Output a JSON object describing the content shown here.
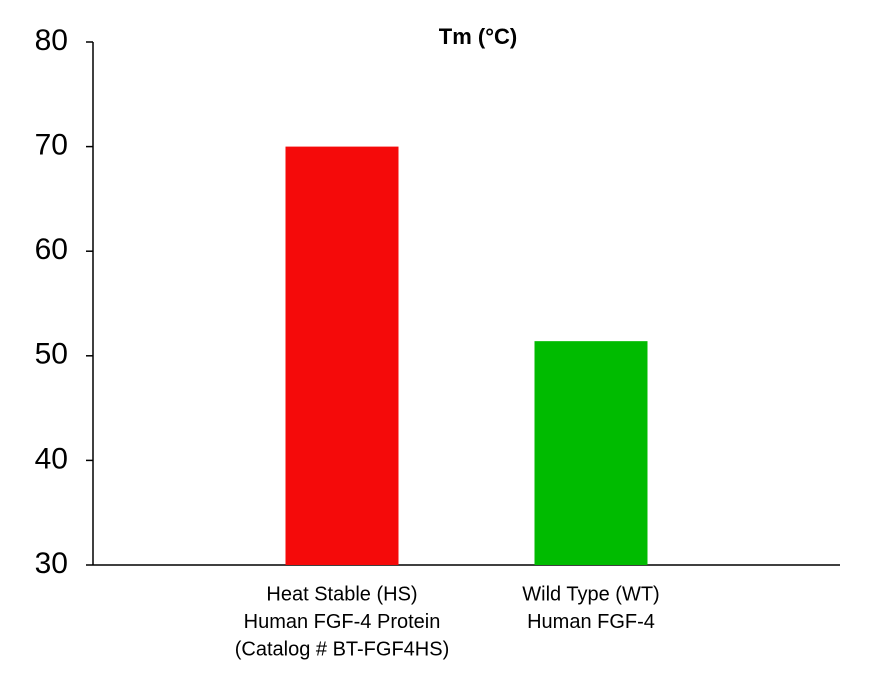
{
  "chart_data": {
    "type": "bar",
    "title": "Tm (°C)",
    "categories": [
      [
        "Heat Stable (HS)",
        "Human FGF-4 Protein",
        "(Catalog # BT-FGF4HS)"
      ],
      [
        "Wild Type (WT)",
        "Human FGF-4"
      ]
    ],
    "values": [
      70,
      51.4
    ],
    "colors": [
      "#f50a0a",
      "#00bb00"
    ],
    "ylim": [
      30,
      80
    ],
    "yticks": [
      30,
      40,
      50,
      60,
      70,
      80
    ],
    "grid": false
  }
}
